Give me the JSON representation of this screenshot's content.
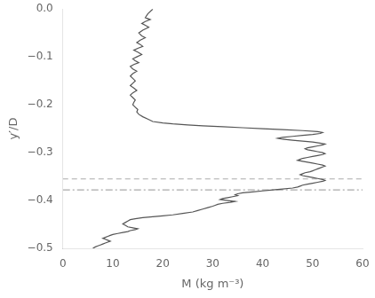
{
  "chart_data": {
    "type": "line",
    "x_label": "M (kg m⁻³)",
    "y_label": "y′/D",
    "xlim": [
      0,
      60
    ],
    "ylim": [
      -0.5,
      0
    ],
    "xticks": [
      0,
      10,
      20,
      30,
      40,
      50,
      60
    ],
    "yticks": [
      {
        "value": 0,
        "label": "0.0"
      },
      {
        "value": -0.1,
        "label": "−0.1"
      },
      {
        "value": -0.2,
        "label": "−0.2"
      },
      {
        "value": -0.3,
        "label": "−0.3"
      },
      {
        "value": -0.4,
        "label": "−0.4"
      },
      {
        "value": -0.5,
        "label": "−0.5"
      }
    ],
    "grid": false,
    "series": [
      {
        "type": "line",
        "color": "#555555",
        "line_style": "solid",
        "x": [
          18.0,
          17.0,
          16.5,
          17.5,
          16.5,
          15.8,
          16.5,
          17.2,
          16.0,
          15.2,
          15.8,
          16.5,
          15.5,
          14.8,
          15.5,
          16.0,
          15.0,
          14.2,
          15.0,
          15.8,
          14.8,
          14.0,
          14.5,
          15.2,
          14.2,
          13.5,
          14.0,
          14.8,
          14.0,
          13.5,
          14.0,
          14.5,
          14.0,
          13.5,
          14.2,
          14.8,
          14.0,
          13.5,
          14.0,
          14.5,
          14.2,
          14.0,
          14.5,
          15.0,
          14.8,
          15.2,
          16.0,
          17.0,
          18.0,
          20.0,
          22.0,
          25.0,
          28.0,
          32.0,
          36.0,
          40.0,
          44.0,
          48.0,
          51.0,
          52.0,
          51.5,
          50.0,
          48.0,
          46.0,
          44.0,
          43.0,
          44.0,
          46.0,
          48.0,
          50.0,
          51.5,
          52.5,
          52.0,
          51.0,
          50.0,
          49.0,
          48.5,
          49.0,
          50.0,
          51.0,
          52.0,
          52.5,
          52.0,
          51.0,
          50.0,
          49.0,
          48.0,
          47.5,
          47.0,
          48.0,
          49.0,
          50.0,
          51.0,
          52.0,
          52.5,
          52.0,
          51.5,
          51.0,
          50.5,
          50.0,
          49.5,
          48.5,
          48.0,
          47.5,
          48.0,
          49.0,
          50.0,
          51.0,
          52.0,
          52.5,
          52.0,
          51.0,
          50.0,
          49.0,
          48.0,
          47.5,
          47.0,
          46.0,
          44.0,
          42.0,
          40.0,
          38.0,
          36.0,
          35.0,
          34.5,
          35.0,
          34.0,
          33.0,
          32.0,
          31.5,
          33.0,
          34.5,
          33.5,
          32.0,
          31.0,
          30.5,
          30.0,
          29.0,
          28.0,
          27.0,
          26.0,
          24.0,
          22.0,
          20.0,
          18.0,
          16.0,
          14.5,
          13.5,
          13.0,
          12.5,
          12.0,
          12.5,
          13.0,
          14.0,
          15.0,
          14.5,
          13.5,
          13.0,
          12.0,
          11.0,
          10.0,
          9.5,
          9.0,
          8.5,
          8.0,
          8.5,
          9.0,
          9.5,
          9.0,
          8.5,
          8.0,
          7.5,
          7.0,
          6.5,
          6.0
        ],
        "values": [
          0.0,
          -0.01,
          -0.018,
          -0.022,
          -0.026,
          -0.03,
          -0.034,
          -0.038,
          -0.044,
          -0.05,
          -0.056,
          -0.06,
          -0.065,
          -0.07,
          -0.074,
          -0.078,
          -0.082,
          -0.086,
          -0.09,
          -0.095,
          -0.1,
          -0.104,
          -0.108,
          -0.112,
          -0.116,
          -0.12,
          -0.125,
          -0.13,
          -0.135,
          -0.14,
          -0.145,
          -0.15,
          -0.155,
          -0.16,
          -0.165,
          -0.17,
          -0.175,
          -0.18,
          -0.185,
          -0.19,
          -0.195,
          -0.2,
          -0.205,
          -0.21,
          -0.215,
          -0.22,
          -0.225,
          -0.23,
          -0.235,
          -0.238,
          -0.24,
          -0.242,
          -0.244,
          -0.246,
          -0.248,
          -0.25,
          -0.252,
          -0.254,
          -0.256,
          -0.258,
          -0.26,
          -0.262,
          -0.264,
          -0.266,
          -0.268,
          -0.27,
          -0.272,
          -0.274,
          -0.276,
          -0.278,
          -0.28,
          -0.282,
          -0.284,
          -0.286,
          -0.288,
          -0.29,
          -0.292,
          -0.294,
          -0.296,
          -0.298,
          -0.3,
          -0.302,
          -0.304,
          -0.306,
          -0.308,
          -0.31,
          -0.312,
          -0.314,
          -0.316,
          -0.318,
          -0.32,
          -0.322,
          -0.324,
          -0.326,
          -0.328,
          -0.33,
          -0.332,
          -0.334,
          -0.336,
          -0.338,
          -0.34,
          -0.342,
          -0.344,
          -0.346,
          -0.348,
          -0.35,
          -0.352,
          -0.354,
          -0.356,
          -0.358,
          -0.36,
          -0.362,
          -0.364,
          -0.366,
          -0.368,
          -0.37,
          -0.372,
          -0.374,
          -0.376,
          -0.378,
          -0.38,
          -0.382,
          -0.384,
          -0.386,
          -0.388,
          -0.39,
          -0.392,
          -0.394,
          -0.396,
          -0.398,
          -0.4,
          -0.402,
          -0.404,
          -0.406,
          -0.408,
          -0.41,
          -0.412,
          -0.415,
          -0.418,
          -0.421,
          -0.424,
          -0.427,
          -0.43,
          -0.432,
          -0.434,
          -0.436,
          -0.438,
          -0.44,
          -0.443,
          -0.446,
          -0.449,
          -0.452,
          -0.455,
          -0.457,
          -0.459,
          -0.461,
          -0.463,
          -0.465,
          -0.467,
          -0.469,
          -0.471,
          -0.473,
          -0.475,
          -0.477,
          -0.479,
          -0.481,
          -0.483,
          -0.485,
          -0.487,
          -0.489,
          -0.491,
          -0.493,
          -0.495,
          -0.497,
          -0.5
        ]
      },
      {
        "type": "hline",
        "color": "#aaaaaa",
        "line_style": "dashed",
        "values": [
          -0.355
        ]
      },
      {
        "type": "hline",
        "color": "#aaaaaa",
        "line_style": "dash-dot",
        "values": [
          -0.378
        ]
      }
    ]
  }
}
